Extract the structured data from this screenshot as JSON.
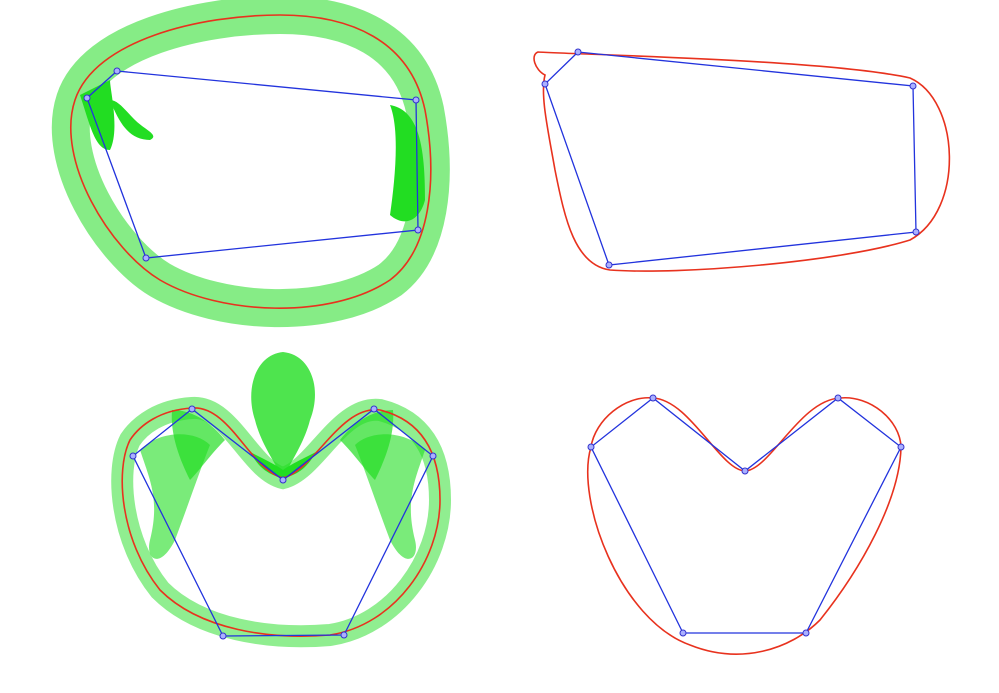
{
  "panels": [
    {
      "id": "top-left",
      "show_normals": true,
      "control_points": [
        [
          117,
          71
        ],
        [
          87,
          98
        ],
        [
          146,
          258
        ],
        [
          418,
          230
        ],
        [
          416,
          100
        ],
        [
          117,
          71
        ]
      ]
    },
    {
      "id": "top-right",
      "show_normals": false,
      "control_points": [
        [
          578,
          52
        ],
        [
          545,
          84
        ],
        [
          609,
          265
        ],
        [
          916,
          232
        ],
        [
          913,
          86
        ],
        [
          578,
          52
        ]
      ]
    },
    {
      "id": "bottom-left",
      "show_normals": true,
      "control_points": [
        [
          192,
          409
        ],
        [
          133,
          456
        ],
        [
          223,
          636
        ],
        [
          344,
          635
        ],
        [
          433,
          456
        ],
        [
          374,
          409
        ],
        [
          283,
          480
        ],
        [
          192,
          409
        ]
      ]
    },
    {
      "id": "bottom-right",
      "show_normals": false,
      "control_points": [
        [
          653,
          398
        ],
        [
          591,
          447
        ],
        [
          683,
          633
        ],
        [
          806,
          633
        ],
        [
          901,
          447
        ],
        [
          838,
          398
        ],
        [
          745,
          471
        ],
        [
          653,
          398
        ]
      ]
    }
  ],
  "colors": {
    "polygon": "#2233dd",
    "curve": "#e8321e",
    "normals": "#22dd22",
    "point": "#3333cc"
  }
}
